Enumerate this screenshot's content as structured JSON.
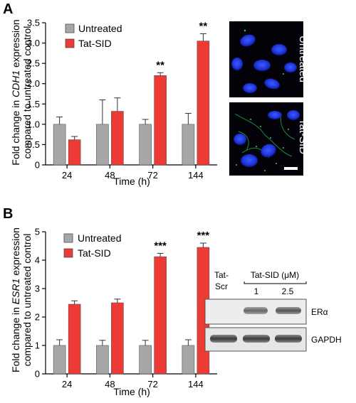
{
  "panel_labels": [
    "A",
    "B"
  ],
  "chart_data": [
    {
      "type": "bar",
      "panel": "A",
      "categories": [
        "24",
        "48",
        "72",
        "144"
      ],
      "xlabel": "Time (h)",
      "ylabel_line1_pre": "Fold change in ",
      "ylabel_line1_gene": "CDH1",
      "ylabel_line1_post": " expression",
      "ylabel_line2": "compared to untreated control",
      "ylim": [
        0,
        3.5
      ],
      "yticks": [
        "0",
        "0.5",
        "1.0",
        "1.5",
        "2.0",
        "2.5",
        "3.0",
        "3.5"
      ],
      "legend_position": "top-left",
      "series": [
        {
          "name": "Untreated",
          "color": "#a7a6a9",
          "values": [
            1.0,
            1.0,
            1.0,
            1.0
          ],
          "errors": [
            0.18,
            0.6,
            0.12,
            0.27
          ]
        },
        {
          "name": "Tat-SID",
          "color": "#ee3a34",
          "values": [
            0.62,
            1.32,
            2.2,
            3.05
          ],
          "errors": [
            0.08,
            0.33,
            0.07,
            0.18
          ]
        }
      ],
      "annotations": [
        {
          "category": "72",
          "text": "**"
        },
        {
          "category": "144",
          "text": "**"
        }
      ]
    },
    {
      "type": "bar",
      "panel": "B",
      "categories": [
        "24",
        "48",
        "72",
        "144"
      ],
      "xlabel": "Time (h)",
      "ylabel_line1_pre": "Fold change in ",
      "ylabel_line1_gene": "ESR1",
      "ylabel_line1_post": " expression",
      "ylabel_line2": "compared to untreated control",
      "ylim": [
        0,
        5
      ],
      "yticks": [
        "0",
        "1",
        "2",
        "3",
        "4",
        "5"
      ],
      "legend_position": "top-left",
      "series": [
        {
          "name": "Untreated",
          "color": "#a7a6a9",
          "values": [
            1.0,
            1.0,
            1.0,
            1.0
          ],
          "errors": [
            0.2,
            0.18,
            0.18,
            0.2
          ]
        },
        {
          "name": "Tat-SID",
          "color": "#ee3a34",
          "values": [
            2.45,
            2.5,
            4.12,
            4.45
          ],
          "errors": [
            0.12,
            0.13,
            0.12,
            0.15
          ]
        }
      ],
      "annotations": [
        {
          "category": "72",
          "text": "***"
        },
        {
          "category": "144",
          "text": "***"
        }
      ]
    }
  ],
  "micrographs": {
    "labels": [
      "Untreated",
      "Tat-SID"
    ]
  },
  "western_blot": {
    "lane_header_left": [
      "Tat-",
      "Scr"
    ],
    "lane_header_group": "Tat-SID (μM)",
    "lane_concentrations": [
      "1",
      "2.5"
    ],
    "bands": [
      "ERα",
      "GAPDH"
    ]
  }
}
